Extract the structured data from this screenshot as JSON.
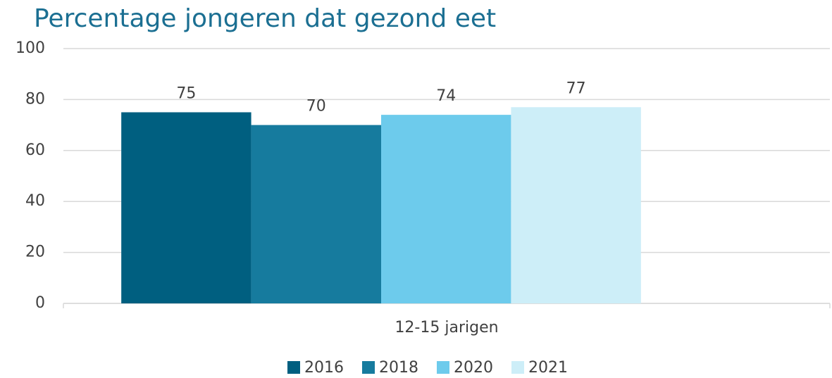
{
  "chart_data": {
    "type": "bar",
    "title": "Percentage jongeren dat gezond eet",
    "categories": [
      "12-15 jarigen"
    ],
    "series": [
      {
        "name": "2016",
        "color": "#005f80",
        "values": [
          75
        ]
      },
      {
        "name": "2018",
        "color": "#167b9e",
        "values": [
          70
        ]
      },
      {
        "name": "2020",
        "color": "#6dcbec",
        "values": [
          74
        ]
      },
      {
        "name": "2021",
        "color": "#cdeef8",
        "values": [
          77
        ]
      }
    ],
    "ylim": [
      0,
      100
    ],
    "yticks": [
      0,
      20,
      40,
      60,
      80,
      100
    ],
    "grid": true,
    "legend": "bottom"
  }
}
